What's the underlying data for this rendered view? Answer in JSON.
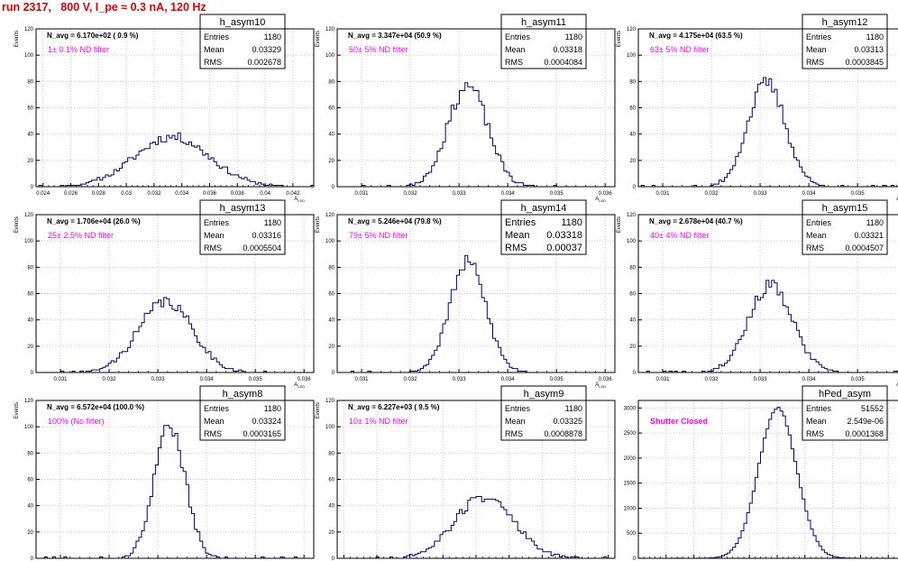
{
  "canvas_title": "run 2317,   800 V, I_pe ≈ 0.3 nA, 120 Hz",
  "colors": {
    "histogram": "#000080",
    "note": "#ff00ff",
    "title": "#e00000",
    "grid": "#c8c8c8"
  },
  "stats_labels": {
    "entries": "Entries",
    "mean": "Mean",
    "rms": "RMS"
  },
  "chart_data": [
    {
      "type": "bar",
      "name": "h_asym10",
      "title": "h_asym10",
      "header": "N_avg = 6.170e+02 ( 0.9 %)",
      "note": "1± 0.1% ND filter",
      "stats": {
        "entries": "1180",
        "mean": "0.03329",
        "rms": "0.002678"
      },
      "ylabel": "Events",
      "xlabel": "A_LED",
      "xlim": [
        0.0235,
        0.0435
      ],
      "ylim": [
        0,
        120
      ],
      "xticks": [
        0.024,
        0.026,
        0.028,
        0.03,
        0.032,
        0.034,
        0.036,
        0.038,
        0.04,
        0.042
      ],
      "xtick_labels": [
        "0.024",
        "0.026",
        "0.028",
        "0.03",
        "0.032",
        "0.034",
        "0.036",
        "0.038",
        "0.04",
        "0.042"
      ],
      "yticks": [
        0,
        20,
        40,
        60,
        80,
        100,
        120
      ],
      "ytick_labels": [
        "0",
        "20",
        "40",
        "60",
        "80",
        "100",
        "120"
      ],
      "mean": 0.03329,
      "sigma": 0.002678,
      "peak": 38,
      "seed": 11,
      "bins": 100
    },
    {
      "type": "bar",
      "name": "h_asym11",
      "title": "h_asym11",
      "header": "N_avg = 3.347e+04 (50.9 %)",
      "note": "50± 5% ND filter",
      "stats": {
        "entries": "1180",
        "mean": "0.03318",
        "rms": "0.0004084"
      },
      "ylabel": "Events",
      "xlabel": "A_LED",
      "xlim": [
        0.0305,
        0.0362
      ],
      "ylim": [
        0,
        120
      ],
      "xticks": [
        0.031,
        0.032,
        0.033,
        0.034,
        0.035,
        0.036
      ],
      "xtick_labels": [
        "0.031",
        "0.032",
        "0.033",
        "0.034",
        "0.035",
        "0.036"
      ],
      "yticks": [
        0,
        20,
        40,
        60,
        80,
        100,
        120
      ],
      "ytick_labels": [
        "0",
        "20",
        "40",
        "60",
        "80",
        "100",
        "120"
      ],
      "mean": 0.03318,
      "sigma": 0.0004084,
      "peak": 77,
      "seed": 23,
      "bins": 100
    },
    {
      "type": "bar",
      "name": "h_asym12",
      "title": "h_asym12",
      "header": "N_avg = 4.175e+04 (63.5 %)",
      "note": "63± 5% ND filter",
      "stats": {
        "entries": "1180",
        "mean": "0.03313",
        "rms": "0.0003845"
      },
      "ylabel": "Events",
      "xlabel": "A_LED",
      "xlim": [
        0.0305,
        0.0362
      ],
      "ylim": [
        0,
        120
      ],
      "xticks": [
        0.031,
        0.032,
        0.033,
        0.034,
        0.035,
        0.036
      ],
      "xtick_labels": [
        "0.031",
        "0.032",
        "0.033",
        "0.034",
        "0.035",
        "0.036"
      ],
      "yticks": [
        0,
        20,
        40,
        60,
        80,
        100,
        120
      ],
      "ytick_labels": [
        "0",
        "20",
        "40",
        "60",
        "80",
        "100",
        "120"
      ],
      "mean": 0.03313,
      "sigma": 0.0003845,
      "peak": 79,
      "seed": 37,
      "bins": 100
    },
    {
      "type": "bar",
      "name": "h_asym13",
      "title": "h_asym13",
      "header": "N_avg = 1.706e+04 (26.0 %)",
      "note": "25± 2.5% ND filter",
      "stats": {
        "entries": "1180",
        "mean": "0.03316",
        "rms": "0.0005504"
      },
      "ylabel": "Events",
      "xlabel": "A_LED",
      "xlim": [
        0.0305,
        0.0362
      ],
      "ylim": [
        0,
        120
      ],
      "xticks": [
        0.031,
        0.032,
        0.033,
        0.034,
        0.035,
        0.036
      ],
      "xtick_labels": [
        "0.031",
        "0.032",
        "0.033",
        "0.034",
        "0.035",
        "0.036"
      ],
      "yticks": [
        0,
        20,
        40,
        60,
        80,
        100,
        120
      ],
      "ytick_labels": [
        "0",
        "20",
        "40",
        "60",
        "80",
        "100",
        "120"
      ],
      "mean": 0.03316,
      "sigma": 0.0005504,
      "peak": 54,
      "seed": 41,
      "bins": 100
    },
    {
      "type": "bar",
      "name": "h_asym14",
      "title": "h_asym14",
      "header": "N_avg = 5.246e+04 (79.8 %)",
      "note": "79± 5% ND filter",
      "stats": {
        "entries": "1180",
        "mean": "0.03318",
        "rms": "0.00037"
      },
      "stats_large": true,
      "ylabel": "Events",
      "xlabel": "A_LED",
      "xlim": [
        0.0305,
        0.0362
      ],
      "ylim": [
        0,
        120
      ],
      "xticks": [
        0.031,
        0.032,
        0.033,
        0.034,
        0.035,
        0.036
      ],
      "xtick_labels": [
        "0.031",
        "0.032",
        "0.033",
        "0.034",
        "0.035",
        "0.036"
      ],
      "yticks": [
        0,
        20,
        40,
        60,
        80,
        100,
        120
      ],
      "ytick_labels": [
        "0",
        "20",
        "40",
        "60",
        "80",
        "100",
        "120"
      ],
      "mean": 0.03318,
      "sigma": 0.00037,
      "peak": 84,
      "seed": 53,
      "bins": 100
    },
    {
      "type": "bar",
      "name": "h_asym15",
      "title": "h_asym15",
      "header": "N_avg = 2.678e+04 (40.7 %)",
      "note": "40± 4% ND filter",
      "stats": {
        "entries": "1180",
        "mean": "0.03321",
        "rms": "0.0004507"
      },
      "ylabel": "Events",
      "xlabel": "A_LED",
      "xlim": [
        0.0305,
        0.0362
      ],
      "ylim": [
        0,
        120
      ],
      "xticks": [
        0.031,
        0.032,
        0.033,
        0.034,
        0.035,
        0.036
      ],
      "xtick_labels": [
        "0.031",
        "0.032",
        "0.033",
        "0.034",
        "0.035",
        "0.036"
      ],
      "yticks": [
        0,
        20,
        40,
        60,
        80,
        100,
        120
      ],
      "ytick_labels": [
        "0",
        "20",
        "40",
        "60",
        "80",
        "100",
        "120"
      ],
      "mean": 0.03321,
      "sigma": 0.0004507,
      "peak": 66,
      "seed": 67,
      "bins": 100
    },
    {
      "type": "bar",
      "name": "h_asym8",
      "title": "h_asym8",
      "header": "N_avg = 6.572e+04 (100.0 %)",
      "note": "100% (No filter)",
      "stats": {
        "entries": "1180",
        "mean": "0.03324",
        "rms": "0.0003165"
      },
      "ylabel": "Events",
      "xlabel": "A_LED",
      "xlim": [
        0.0305,
        0.0362
      ],
      "ylim": [
        0,
        120
      ],
      "xticks": [
        0.031,
        0.032,
        0.033,
        0.034,
        0.035,
        0.036
      ],
      "xtick_labels": [
        "0.031",
        "0.032",
        "0.033",
        "0.034",
        "0.035",
        "0.036"
      ],
      "yticks": [
        0,
        20,
        40,
        60,
        80,
        100,
        120
      ],
      "ytick_labels": [
        "0",
        "20",
        "40",
        "60",
        "80",
        "100",
        "120"
      ],
      "mean": 0.03324,
      "sigma": 0.0003165,
      "peak": 101,
      "seed": 79,
      "bins": 100
    },
    {
      "type": "bar",
      "name": "h_asym9",
      "title": "h_asym9",
      "header": "N_avg = 6.227e+03 ( 9.5 %)",
      "note": "10± 1% ND filter",
      "stats": {
        "entries": "1180",
        "mean": "0.03325",
        "rms": "0.0008878"
      },
      "ylabel": "Events",
      "xlabel": "A_LED",
      "xlim": [
        0.0288,
        0.0372
      ],
      "ylim": [
        0,
        120
      ],
      "xticks": [
        0.029,
        0.03,
        0.031,
        0.032,
        0.033,
        0.034,
        0.035,
        0.036,
        0.037
      ],
      "xtick_labels": [
        "0.029",
        "0.03",
        "0.031",
        "0.032",
        "0.033",
        "0.034",
        "0.035",
        "0.036",
        "0.037"
      ],
      "yticks": [
        0,
        20,
        40,
        60,
        80,
        100,
        120
      ],
      "ytick_labels": [
        "0",
        "20",
        "40",
        "60",
        "80",
        "100",
        "120"
      ],
      "mean": 0.03325,
      "sigma": 0.0008878,
      "peak": 47,
      "seed": 89,
      "bins": 100
    },
    {
      "type": "bar",
      "name": "hPed_asym",
      "title": "hPed_asym",
      "header": "",
      "note": "Shutter Closed",
      "note_bold": true,
      "stats": {
        "entries": "51552",
        "mean": "2.549e-06",
        "rms": "0.0001368"
      },
      "ylabel": "",
      "xlabel": "",
      "xlim": [
        -0.001,
        0.001
      ],
      "ylim": [
        0,
        3150
      ],
      "xticks": [
        -0.001,
        -0.0008,
        -0.0006,
        -0.0004,
        -0.0002,
        0,
        0.0002,
        0.0004,
        0.0006,
        0.0008,
        0.001
      ],
      "xtick_labels": [
        "-0.001",
        "-0.0008",
        "-0.0006",
        "-0.0004",
        "-0.0002",
        "0",
        "0.0002",
        "0.0004",
        "0.0006",
        "0.0008",
        "0.001"
      ],
      "yticks": [
        0,
        500,
        1000,
        1500,
        2000,
        2500,
        3000
      ],
      "ytick_labels": [
        "0",
        "500",
        "1000",
        "1500",
        "2000",
        "2500",
        "3000"
      ],
      "mean": 2.549e-06,
      "sigma": 0.0001368,
      "peak": 3000,
      "seed": 97,
      "bins": 100,
      "smooth": true
    }
  ]
}
